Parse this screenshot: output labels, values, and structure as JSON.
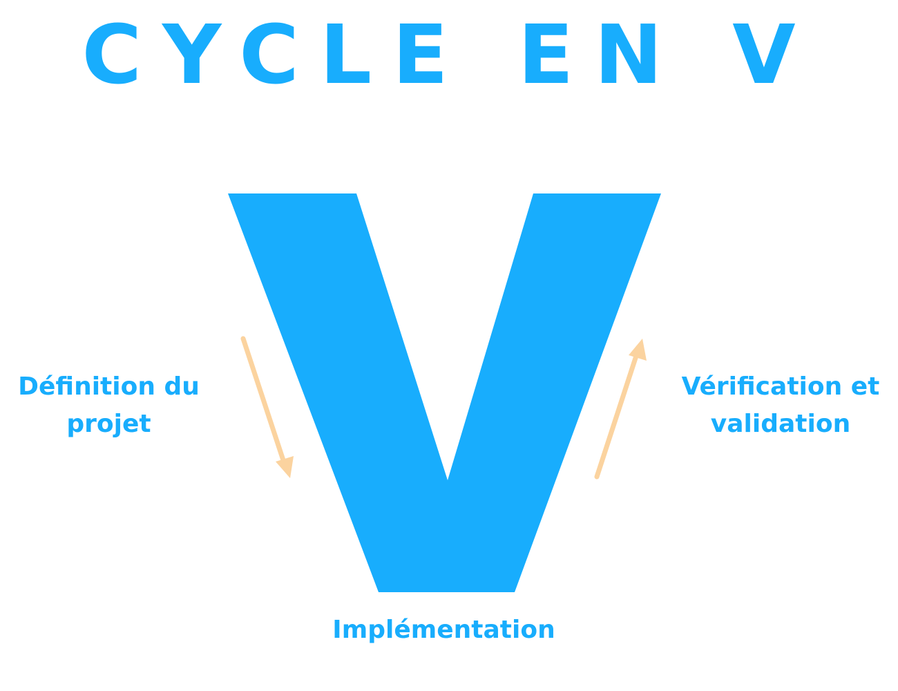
{
  "title": "CYCLE EN V",
  "colors": {
    "primary": "#18adfd",
    "arrow": "#fbd39f"
  },
  "phases": {
    "left": {
      "line1": "Définition du",
      "line2": "projet",
      "arrow": "down"
    },
    "right": {
      "line1": "Vérification et",
      "line2": "validation",
      "arrow": "up"
    },
    "bottom": {
      "label": "Implémentation"
    }
  }
}
